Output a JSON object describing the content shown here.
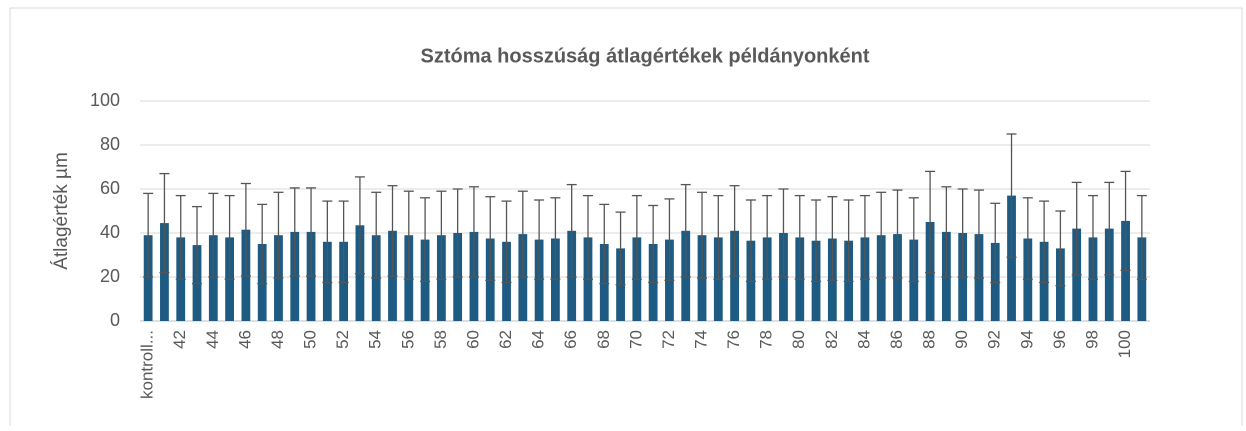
{
  "chart_data": {
    "type": "bar",
    "title": "Sztóma hosszúság átlagértékek példányonként",
    "y_label": "Átlagérték µm",
    "categories": [
      "kontroll...",
      null,
      "42",
      null,
      "44",
      null,
      "46",
      null,
      "48",
      null,
      "50",
      null,
      "52",
      null,
      "54",
      null,
      "56",
      null,
      "58",
      null,
      "60",
      null,
      "62",
      null,
      "64",
      null,
      "66",
      null,
      "68",
      null,
      "70",
      null,
      "72",
      null,
      "74",
      null,
      "76",
      null,
      "78",
      null,
      "80",
      null,
      "82",
      null,
      "84",
      null,
      "86",
      null,
      "88",
      null,
      "90",
      null,
      "92",
      null,
      "94",
      null,
      "96",
      null,
      "98",
      null,
      "100",
      null
    ],
    "values": [
      39,
      44.5,
      38,
      34.5,
      39,
      38,
      41.5,
      35,
      39,
      40.5,
      40.5,
      36,
      36,
      43.5,
      39,
      41,
      39,
      37,
      39,
      40,
      40.5,
      37.5,
      36,
      39.5,
      37,
      37.5,
      41,
      38,
      35,
      33,
      38,
      35,
      37,
      41,
      39,
      38,
      41,
      36.5,
      38,
      40,
      38,
      36.5,
      37.5,
      36.5,
      38,
      39,
      39.5,
      37,
      45,
      40.5,
      40,
      39.5,
      35.5,
      57,
      37.5,
      36,
      33,
      42,
      38,
      42,
      45.5,
      38
    ],
    "errors": [
      19,
      22.5,
      19,
      17.5,
      19,
      19,
      21,
      18,
      19.5,
      20,
      20,
      18.5,
      18.5,
      22,
      19.5,
      20.5,
      20,
      19,
      20,
      20,
      20.5,
      19,
      18.5,
      19.5,
      18,
      18.5,
      21,
      19,
      18,
      16.5,
      19,
      17.5,
      18.5,
      21,
      19.5,
      19,
      20.5,
      18.5,
      19,
      20,
      19,
      18.5,
      19,
      18.5,
      19,
      19.5,
      20,
      19,
      23,
      20.5,
      20,
      20,
      18,
      28,
      18.5,
      18.5,
      17,
      21,
      19,
      21,
      22.5,
      19
    ],
    "color": "#1d5b82",
    "error_color": "#555555",
    "ylim": [
      0,
      100
    ],
    "yticks": [
      0,
      20,
      40,
      60,
      80,
      100
    ],
    "grid": true
  }
}
